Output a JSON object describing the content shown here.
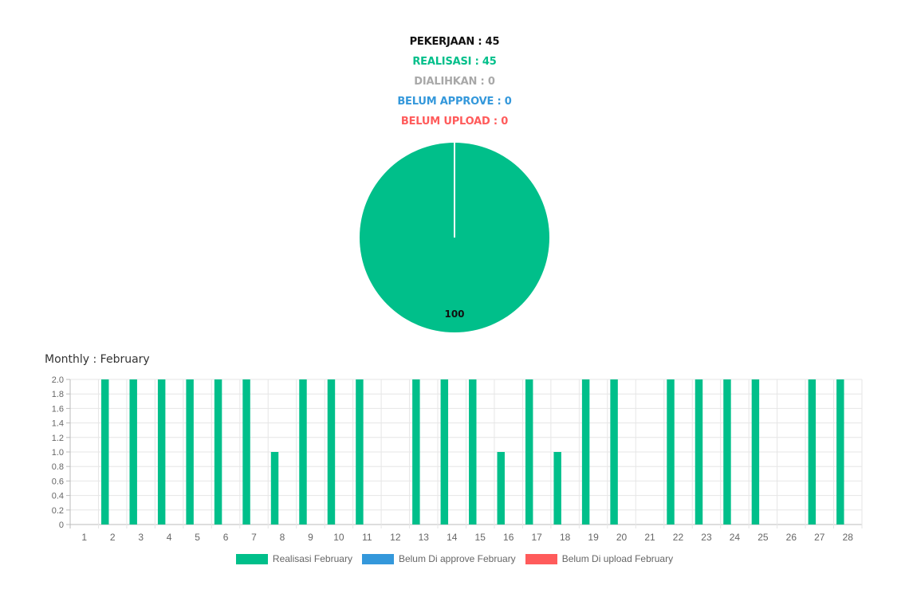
{
  "summary": {
    "pekerjaan": "PEKERJAAN : 45",
    "realisasi": "REALISASI : 45",
    "dialihkan": "DIALIHKAN : 0",
    "belum_approve": "BELUM APPROVE : 0",
    "belum_upload": "BELUM UPLOAD : 0"
  },
  "colors": {
    "realisasi": "#00bf8a",
    "dialihkan": "#a8a8a8",
    "belum_approve": "#3498db",
    "belum_upload": "#ff5b5b",
    "pekerjaan": "#111111"
  },
  "pie": {
    "type": "pie",
    "slices": [
      {
        "label": "Realisasi",
        "value": 100,
        "color": "#00bf8a"
      }
    ],
    "data_label": "100"
  },
  "monthly_title": "Monthly : February",
  "chart_data": {
    "type": "bar",
    "categories": [
      "1",
      "2",
      "3",
      "4",
      "5",
      "6",
      "7",
      "8",
      "9",
      "10",
      "11",
      "12",
      "13",
      "14",
      "15",
      "16",
      "17",
      "18",
      "19",
      "20",
      "21",
      "22",
      "23",
      "24",
      "25",
      "26",
      "27",
      "28"
    ],
    "series": [
      {
        "name": "Realisasi February",
        "color": "#00bf8a",
        "values": [
          0,
          2,
          2,
          2,
          2,
          2,
          2,
          1,
          2,
          2,
          2,
          0,
          2,
          2,
          2,
          1,
          2,
          1,
          2,
          2,
          0,
          2,
          2,
          2,
          2,
          0,
          2,
          2
        ]
      },
      {
        "name": "Belum Di approve February",
        "color": "#3498db",
        "values": [
          0,
          0,
          0,
          0,
          0,
          0,
          0,
          0,
          0,
          0,
          0,
          0,
          0,
          0,
          0,
          0,
          0,
          0,
          0,
          0,
          0,
          0,
          0,
          0,
          0,
          0,
          0,
          0
        ]
      },
      {
        "name": "Belum Di upload February",
        "color": "#ff5b5b",
        "values": [
          0,
          0,
          0,
          0,
          0,
          0,
          0,
          0,
          0,
          0,
          0,
          0,
          0,
          0,
          0,
          0,
          0,
          0,
          0,
          0,
          0,
          0,
          0,
          0,
          0,
          0,
          0,
          0
        ]
      }
    ],
    "yticks": [
      "0",
      "0.2",
      "0.4",
      "0.6",
      "0.8",
      "1.0",
      "1.2",
      "1.4",
      "1.6",
      "1.8",
      "2.0"
    ],
    "ylim": [
      0,
      2
    ],
    "grid": true,
    "legend_position": "bottom"
  }
}
